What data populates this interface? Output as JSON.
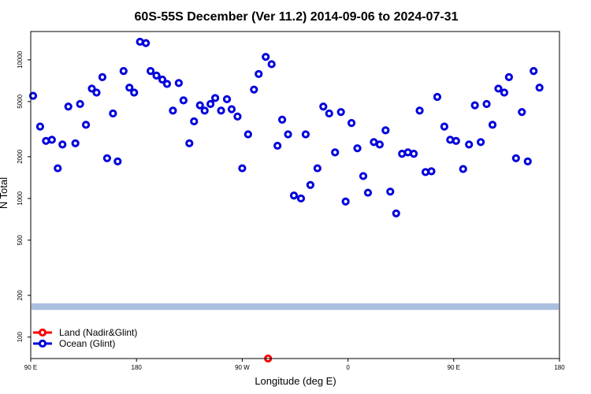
{
  "chart_data": {
    "type": "scatter",
    "title": "60S-55S December (Ver 11.2)   2014-09-06 to 2024-07-31",
    "xlabel": "Longitude (deg E)",
    "ylabel": "N Total",
    "x_ticks": [
      {
        "value": 90,
        "label": "90 E"
      },
      {
        "value": 180,
        "label": "180"
      },
      {
        "value": 270,
        "label": "90 W"
      },
      {
        "value": 360,
        "label": "0"
      },
      {
        "value": 450,
        "label": "90 E"
      },
      {
        "value": 540,
        "label": "180"
      }
    ],
    "y_ticks": [
      {
        "value": 100,
        "label": "100"
      },
      {
        "value": 200,
        "label": "200"
      },
      {
        "value": 500,
        "label": "500"
      },
      {
        "value": 1000,
        "label": "1000"
      },
      {
        "value": 2000,
        "label": "2000"
      },
      {
        "value": 5000,
        "label": "5000"
      },
      {
        "value": 10000,
        "label": "10000"
      }
    ],
    "xlim": [
      90,
      540
    ],
    "ylim": [
      70,
      16000
    ],
    "y_scale": "log",
    "band": {
      "ymin": 157,
      "ymax": 175,
      "color": "#a9bfe0"
    },
    "legend_position": "bottom-left",
    "series": [
      {
        "name": "Land (Nadir&Glint)",
        "color": "#ff0000",
        "points": [
          [
            292,
            70
          ]
        ]
      },
      {
        "name": "Ocean (Glint)",
        "color": "#0000dd",
        "points": [
          [
            92,
            5500
          ],
          [
            98,
            3300
          ],
          [
            103,
            2600
          ],
          [
            108,
            2650
          ],
          [
            113,
            1650
          ],
          [
            117,
            2450
          ],
          [
            122,
            4600
          ],
          [
            128,
            2500
          ],
          [
            132,
            4800
          ],
          [
            137,
            3400
          ],
          [
            142,
            6200
          ],
          [
            146,
            5800
          ],
          [
            151,
            7500
          ],
          [
            155,
            1950
          ],
          [
            160,
            4100
          ],
          [
            164,
            1850
          ],
          [
            169,
            8300
          ],
          [
            174,
            6300
          ],
          [
            178,
            5800
          ],
          [
            183,
            13500
          ],
          [
            188,
            13200
          ],
          [
            192,
            8300
          ],
          [
            197,
            7700
          ],
          [
            202,
            7200
          ],
          [
            206,
            6700
          ],
          [
            211,
            4300
          ],
          [
            216,
            6800
          ],
          [
            220,
            5100
          ],
          [
            225,
            2500
          ],
          [
            229,
            3600
          ],
          [
            234,
            4700
          ],
          [
            238,
            4300
          ],
          [
            243,
            4800
          ],
          [
            247,
            5300
          ],
          [
            252,
            4300
          ],
          [
            257,
            5200
          ],
          [
            261,
            4400
          ],
          [
            266,
            3900
          ],
          [
            270,
            1650
          ],
          [
            275,
            2900
          ],
          [
            280,
            6100
          ],
          [
            284,
            7900
          ],
          [
            290,
            10500
          ],
          [
            295,
            9300
          ],
          [
            300,
            2400
          ],
          [
            304,
            3700
          ],
          [
            309,
            2900
          ],
          [
            314,
            1050
          ],
          [
            320,
            1000
          ],
          [
            324,
            2900
          ],
          [
            328,
            1250
          ],
          [
            334,
            1650
          ],
          [
            339,
            4600
          ],
          [
            344,
            4100
          ],
          [
            349,
            2150
          ],
          [
            354,
            4200
          ],
          [
            358,
            950
          ],
          [
            363,
            3500
          ],
          [
            368,
            2300
          ],
          [
            373,
            1450
          ],
          [
            377,
            1100
          ],
          [
            382,
            2550
          ],
          [
            387,
            2450
          ],
          [
            392,
            3100
          ],
          [
            396,
            1120
          ],
          [
            401,
            780
          ],
          [
            406,
            2100
          ],
          [
            411,
            2150
          ],
          [
            416,
            2100
          ],
          [
            421,
            4300
          ],
          [
            426,
            1550
          ],
          [
            431,
            1570
          ],
          [
            436,
            5400
          ],
          [
            442,
            3300
          ],
          [
            447,
            2650
          ],
          [
            452,
            2600
          ],
          [
            458,
            1630
          ],
          [
            463,
            2450
          ],
          [
            468,
            4700
          ],
          [
            473,
            2550
          ],
          [
            478,
            4800
          ],
          [
            483,
            3400
          ],
          [
            488,
            6200
          ],
          [
            493,
            5800
          ],
          [
            497,
            7500
          ],
          [
            503,
            1950
          ],
          [
            508,
            4200
          ],
          [
            513,
            1850
          ],
          [
            518,
            8300
          ],
          [
            523,
            6300
          ]
        ]
      }
    ]
  }
}
